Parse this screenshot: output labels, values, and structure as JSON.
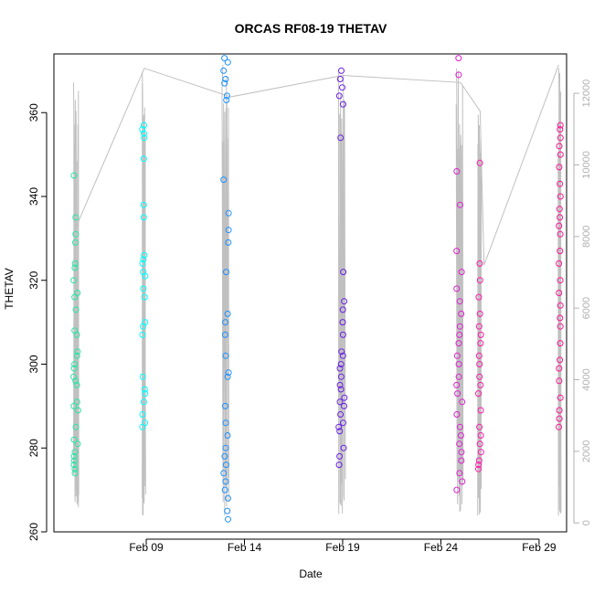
{
  "chart_data": {
    "type": "scatter",
    "title": "ORCAS RF08-19 THETAV",
    "xlabel": "Date",
    "ylabel": "THETAV",
    "x_date_ticks": [
      "Feb 09",
      "Feb 14",
      "Feb 19",
      "Feb 24",
      "Feb 29"
    ],
    "x_date_tick_days": [
      9,
      14,
      19,
      24,
      29
    ],
    "xlim_days": [
      4.3,
      30.4
    ],
    "ylim": [
      260,
      374
    ],
    "y_ticks": [
      260,
      280,
      300,
      320,
      340,
      360
    ],
    "y2_ticks": [
      0,
      2000,
      4000,
      6000,
      8000,
      10000,
      12000
    ],
    "y2lim": [
      -250,
      13100
    ],
    "grid": false,
    "altitude_color": "#c0c0c0",
    "altitude_track": [
      {
        "x": 5.3,
        "y": 8100
      },
      {
        "x": 8.9,
        "y": 12700
      },
      {
        "x": 13.3,
        "y": 11900
      },
      {
        "x": 19.0,
        "y": 12500
      },
      {
        "x": 25.0,
        "y": 12300
      },
      {
        "x": 26.0,
        "y": 11500
      },
      {
        "x": 26.2,
        "y": 7200
      },
      {
        "x": 30.0,
        "y": 12800
      }
    ],
    "flights": [
      {
        "color": "#26e6a6",
        "x": 5.3,
        "x_end": 5.55,
        "alt_max": 12300,
        "alt_min": 300,
        "theta_min": 273,
        "theta_max": 346,
        "n": 45,
        "values": [
          274,
          275,
          276,
          277,
          278,
          279,
          281,
          282,
          285,
          289,
          290,
          291,
          295,
          296,
          297,
          299,
          300,
          302,
          303,
          307,
          308,
          313,
          316,
          317,
          320,
          323,
          324,
          329,
          331,
          335,
          345
        ]
      },
      {
        "color": "#00ffff",
        "x": 8.8,
        "x_end": 8.95,
        "alt_max": 12600,
        "alt_min": 200,
        "theta_min": 285,
        "theta_max": 357,
        "n": 40,
        "values": [
          285,
          286,
          288,
          291,
          293,
          294,
          297,
          307,
          309,
          310,
          316,
          318,
          321,
          322,
          324,
          325,
          326,
          335,
          338,
          349,
          354,
          355,
          356,
          357
        ]
      },
      {
        "color": "#1e90ff",
        "x": 12.9,
        "x_end": 13.2,
        "alt_max": 12800,
        "alt_min": 200,
        "theta_min": 263,
        "theta_max": 373,
        "n": 55,
        "values": [
          263,
          265,
          268,
          270,
          272,
          274,
          276,
          278,
          280,
          283,
          286,
          290,
          297,
          298,
          302,
          307,
          310,
          312,
          322,
          329,
          332,
          336,
          344,
          363,
          364,
          367,
          368,
          370,
          372,
          373
        ]
      },
      {
        "color": "#6a1ee6",
        "x": 18.8,
        "x_end": 19.1,
        "alt_max": 12600,
        "alt_min": 100,
        "theta_min": 276,
        "theta_max": 370,
        "n": 60,
        "values": [
          276,
          278,
          280,
          284,
          285,
          286,
          288,
          290,
          291,
          292,
          294,
          295,
          297,
          299,
          300,
          302,
          303,
          307,
          310,
          313,
          315,
          322,
          354,
          362,
          364,
          366,
          368,
          370
        ]
      },
      {
        "color": "#e020d0",
        "x": 24.8,
        "x_end": 25.1,
        "alt_max": 12700,
        "alt_min": 200,
        "theta_min": 270,
        "theta_max": 373,
        "n": 55,
        "values": [
          270,
          272,
          274,
          277,
          279,
          281,
          283,
          285,
          288,
          291,
          293,
          295,
          297,
          300,
          302,
          305,
          307,
          309,
          312,
          315,
          318,
          322,
          327,
          338,
          346,
          369,
          373
        ]
      },
      {
        "color": "#ff1aa8",
        "x": 25.9,
        "x_end": 26.05,
        "alt_max": 11400,
        "alt_min": 100,
        "theta_min": 275,
        "theta_max": 348,
        "n": 45,
        "values": [
          275,
          276,
          277,
          279,
          281,
          283,
          285,
          289,
          293,
          295,
          297,
          300,
          302,
          305,
          307,
          309,
          312,
          316,
          320,
          324,
          348
        ]
      },
      {
        "color": "#ff1493",
        "x": 30.0,
        "x_end": 30.1,
        "alt_max": 12700,
        "alt_min": 200,
        "theta_min": 285,
        "theta_max": 357,
        "n": 55,
        "values": [
          285,
          287,
          289,
          292,
          296,
          299,
          301,
          305,
          309,
          311,
          314,
          317,
          320,
          324,
          327,
          331,
          333,
          335,
          337,
          340,
          343,
          347,
          350,
          352,
          354,
          356,
          357
        ]
      }
    ]
  }
}
